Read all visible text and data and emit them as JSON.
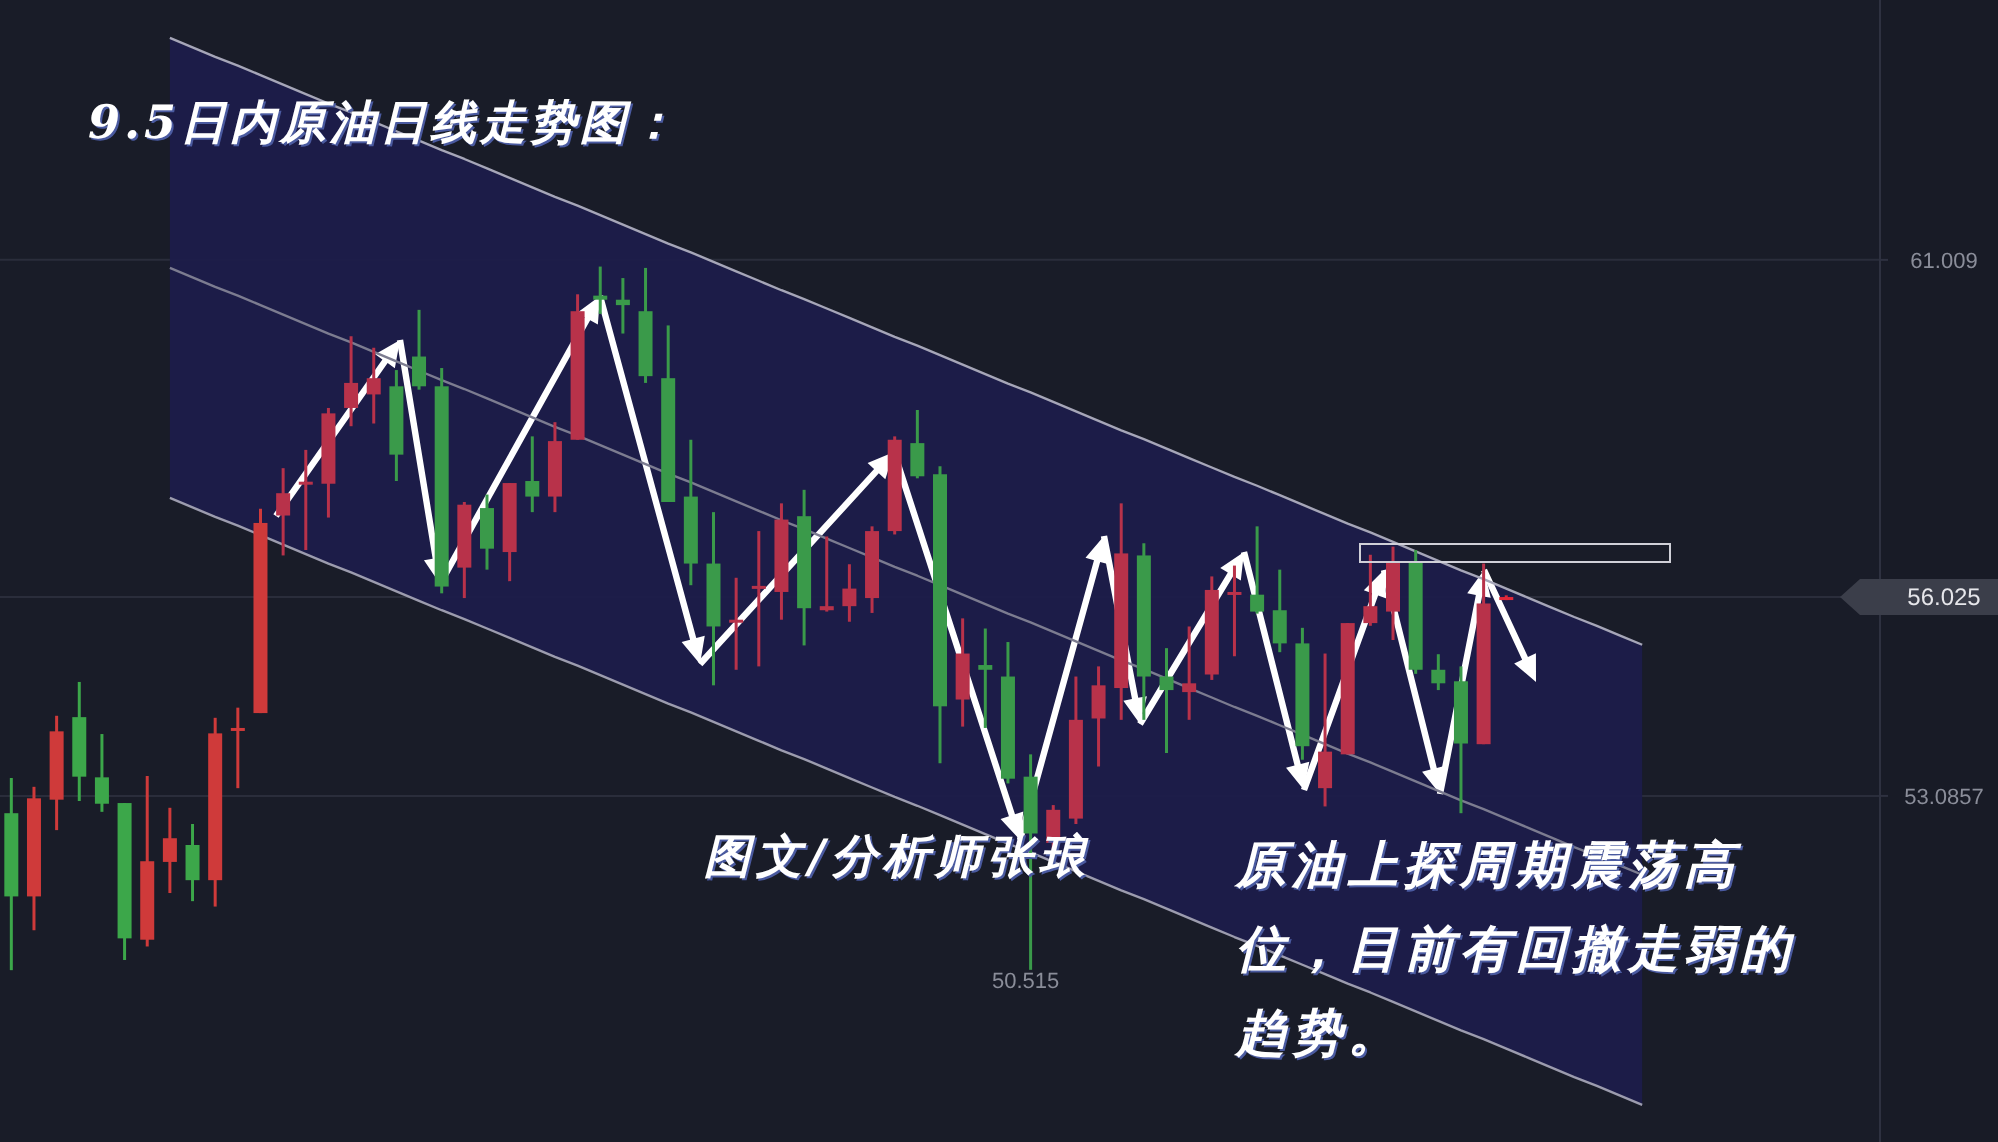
{
  "chart_data": {
    "type": "candlestick",
    "title": "9.5日内原油日线走势图：",
    "categories": [
      null,
      null,
      null,
      null,
      null,
      null,
      null,
      null,
      null,
      null,
      null,
      null,
      null,
      null,
      null,
      null,
      null,
      null,
      null,
      null,
      null,
      null,
      null,
      null,
      null,
      null,
      null,
      null,
      null,
      null,
      null,
      null,
      null,
      null,
      null,
      null,
      null,
      null,
      null,
      null,
      null,
      null,
      null,
      null,
      null,
      null,
      null,
      null,
      null,
      null,
      null,
      null,
      null,
      null,
      null,
      null,
      null,
      null,
      null,
      null,
      null,
      null,
      null,
      null,
      null,
      null,
      null,
      null,
      null,
      null,
      null,
      null,
      null,
      null,
      null,
      null,
      null,
      null,
      null,
      null,
      null,
      null,
      null
    ],
    "ohlc": [
      [
        52.83,
        53.35,
        50.51,
        51.6
      ],
      [
        51.6,
        53.22,
        51.1,
        53.05
      ],
      [
        53.03,
        54.27,
        52.58,
        54.04
      ],
      [
        54.25,
        54.77,
        53.01,
        53.37
      ],
      [
        53.36,
        54.0,
        52.85,
        52.97
      ],
      [
        52.98,
        52.98,
        50.66,
        50.98
      ],
      [
        50.96,
        53.38,
        50.86,
        52.12
      ],
      [
        52.11,
        52.91,
        51.65,
        52.46
      ],
      [
        52.36,
        52.67,
        51.53,
        51.84
      ],
      [
        51.84,
        54.24,
        51.45,
        54.01
      ],
      [
        54.08,
        54.39,
        53.2,
        54.09
      ],
      [
        54.31,
        57.33,
        54.31,
        57.12
      ],
      [
        57.23,
        57.93,
        56.64,
        57.56
      ],
      [
        57.7,
        58.2,
        56.72,
        57.73
      ],
      [
        57.7,
        58.82,
        57.2,
        58.74
      ],
      [
        58.82,
        59.88,
        58.55,
        59.19
      ],
      [
        59.02,
        59.71,
        58.59,
        59.26
      ],
      [
        59.14,
        59.38,
        57.74,
        58.13
      ],
      [
        59.58,
        60.27,
        59.09,
        59.14
      ],
      [
        59.14,
        59.41,
        56.08,
        56.18
      ],
      [
        56.46,
        57.43,
        56.01,
        57.39
      ],
      [
        57.34,
        57.54,
        56.43,
        56.74
      ],
      [
        56.69,
        57.71,
        56.26,
        57.71
      ],
      [
        57.74,
        58.4,
        57.28,
        57.51
      ],
      [
        57.51,
        58.61,
        57.28,
        58.33
      ],
      [
        58.35,
        60.5,
        58.35,
        60.25
      ],
      [
        60.48,
        60.91,
        60.21,
        60.42
      ],
      [
        60.42,
        60.74,
        59.92,
        60.34
      ],
      [
        60.25,
        60.89,
        59.19,
        59.29
      ],
      [
        59.26,
        60.04,
        57.43,
        57.43
      ],
      [
        57.51,
        58.35,
        56.2,
        56.52
      ],
      [
        56.52,
        57.28,
        54.72,
        55.59
      ],
      [
        55.67,
        56.31,
        54.95,
        55.69
      ],
      [
        56.18,
        57.0,
        55.0,
        56.19
      ],
      [
        56.1,
        57.41,
        55.69,
        57.17
      ],
      [
        57.22,
        57.61,
        55.31,
        55.86
      ],
      [
        55.83,
        56.92,
        55.81,
        55.89
      ],
      [
        55.89,
        56.51,
        55.66,
        56.15
      ],
      [
        56.01,
        57.07,
        55.79,
        57.0
      ],
      [
        57.0,
        58.4,
        56.95,
        58.35
      ],
      [
        58.3,
        58.79,
        57.78,
        57.81
      ],
      [
        57.84,
        57.96,
        53.57,
        54.41
      ],
      [
        54.51,
        55.71,
        54.11,
        55.19
      ],
      [
        55.02,
        55.56,
        54.09,
        54.95
      ],
      [
        54.85,
        55.36,
        53.27,
        53.34
      ],
      [
        53.37,
        53.7,
        50.515,
        52.53
      ],
      [
        52.39,
        52.95,
        52.29,
        52.88
      ],
      [
        52.75,
        54.85,
        52.67,
        54.21
      ],
      [
        54.23,
        55.0,
        53.52,
        54.72
      ],
      [
        54.68,
        57.41,
        54.21,
        56.67
      ],
      [
        56.64,
        56.82,
        54.21,
        54.85
      ],
      [
        54.85,
        55.27,
        53.72,
        54.65
      ],
      [
        54.62,
        55.59,
        54.21,
        54.75
      ],
      [
        54.88,
        56.33,
        54.8,
        56.13
      ],
      [
        56.06,
        56.49,
        55.15,
        56.1
      ],
      [
        56.06,
        57.07,
        55.78,
        55.81
      ],
      [
        55.83,
        56.43,
        55.21,
        55.34
      ],
      [
        55.34,
        55.57,
        53.62,
        53.82
      ],
      [
        53.2,
        55.19,
        52.93,
        53.74
      ],
      [
        53.7,
        55.64,
        53.7,
        55.64
      ],
      [
        55.64,
        56.65,
        55.6,
        55.89
      ],
      [
        55.81,
        56.77,
        55.39,
        56.55
      ],
      [
        56.55,
        56.72,
        54.89,
        54.95
      ],
      [
        54.95,
        55.18,
        54.65,
        54.75
      ],
      [
        54.78,
        55.0,
        52.83,
        53.86
      ],
      [
        53.85,
        56.52,
        53.85,
        55.93
      ],
      [
        56.0,
        56.05,
        55.98,
        56.025
      ],
      null,
      null,
      null,
      null,
      null,
      null,
      null,
      null,
      null,
      null,
      null,
      null,
      null,
      null,
      null,
      null
    ],
    "colors": [
      "#3ca74a",
      "#cf3a3a",
      "#cf3a3a",
      "#3ca74a",
      "#3ca74a",
      "#3ca74a",
      "#cf3a3a",
      "#cf3a3a",
      "#3ca74a",
      "#cf3a3a",
      "#cf3a3a",
      "#cf3a3a",
      "#b8324a",
      "#b8324a",
      "#b8324a",
      "#b8324a",
      "#b8324a",
      "#3a9a4a",
      "#3a9a4a",
      "#3a9a4a",
      "#b8324a",
      "#3a9a4a",
      "#b8324a",
      "#3a9a4a",
      "#b8324a",
      "#b8324a",
      "#3a9a4a",
      "#3a9a4a",
      "#3a9a4a",
      "#3a9a4a",
      "#3a9a4a",
      "#3a9a4a",
      "#b8324a",
      "#b8324a",
      "#b8324a",
      "#3a9a4a",
      "#b8324a",
      "#b8324a",
      "#b8324a",
      "#b8324a",
      "#3a9a4a",
      "#3a9a4a",
      "#b8324a",
      "#3a9a4a",
      "#3a9a4a",
      "#3a9a4a",
      "#b8324a",
      "#b8324a",
      "#b8324a",
      "#b8324a",
      "#3a9a4a",
      "#3a9a4a",
      "#b8324a",
      "#b8324a",
      "#b8324a",
      "#3a9a4a",
      "#3a9a4a",
      "#3a9a4a",
      "#b8324a",
      "#b8324a",
      "#b8324a",
      "#b8324a",
      "#3a9a4a",
      "#3a9a4a",
      "#3a9a4a",
      "#b8324a",
      "#e0283a",
      null,
      null,
      null,
      null,
      null,
      null,
      null,
      null,
      null,
      null,
      null,
      null,
      null,
      null,
      null,
      null
    ],
    "series": [
      {
        "type": "line",
        "color": "#a6a6b8",
        "values": [
          null,
          null,
          null,
          null,
          null,
          null,
          null,
          64.29,
          64.15,
          64.01,
          63.88,
          63.74,
          63.6,
          63.46,
          63.32,
          63.19,
          63.05,
          62.91,
          62.77,
          62.63,
          62.5,
          62.36,
          62.22,
          62.08,
          61.94,
          61.81,
          61.67,
          61.53,
          61.39,
          61.25,
          61.12,
          60.98,
          60.84,
          60.7,
          60.56,
          60.43,
          60.29,
          60.15,
          60.01,
          59.87,
          59.74,
          59.6,
          59.46,
          59.32,
          59.18,
          59.05,
          58.91,
          58.77,
          58.63,
          58.49,
          58.36,
          58.22,
          58.08,
          57.94,
          57.8,
          57.67,
          57.53,
          57.39,
          57.25,
          57.11,
          56.98,
          56.84,
          56.7,
          56.56,
          56.42,
          56.29,
          56.15,
          56.01,
          55.87,
          55.73,
          55.6,
          55.46,
          55.32,
          null,
          null,
          null,
          null,
          null,
          null,
          null,
          null,
          null,
          null
        ]
      },
      {
        "type": "line",
        "color": "#7c7c90",
        "values": [
          null,
          null,
          null,
          null,
          null,
          null,
          null,
          60.89,
          60.75,
          60.61,
          60.48,
          60.34,
          60.2,
          60.06,
          59.92,
          59.79,
          59.65,
          59.51,
          59.37,
          59.23,
          59.1,
          58.96,
          58.82,
          58.68,
          58.54,
          58.41,
          58.27,
          58.13,
          57.99,
          57.85,
          57.72,
          57.58,
          57.44,
          57.3,
          57.16,
          57.03,
          56.89,
          56.75,
          56.61,
          56.47,
          56.34,
          56.2,
          56.06,
          55.92,
          55.78,
          55.65,
          55.51,
          55.37,
          55.23,
          55.09,
          54.96,
          54.82,
          54.68,
          54.54,
          54.4,
          54.27,
          54.13,
          53.99,
          53.85,
          53.71,
          53.58,
          53.44,
          53.3,
          53.16,
          53.02,
          52.89,
          52.75,
          52.61,
          52.47,
          52.33,
          52.2,
          52.06,
          51.92,
          null,
          null,
          null,
          null,
          null,
          null,
          null,
          null,
          null,
          null
        ]
      },
      {
        "type": "line",
        "color": "#9c9cae",
        "values": [
          null,
          null,
          null,
          null,
          null,
          null,
          null,
          57.49,
          57.35,
          57.21,
          57.08,
          56.94,
          56.8,
          56.66,
          56.52,
          56.39,
          56.25,
          56.11,
          55.97,
          55.83,
          55.7,
          55.56,
          55.42,
          55.28,
          55.14,
          55.01,
          54.87,
          54.73,
          54.59,
          54.45,
          54.32,
          54.18,
          54.04,
          53.9,
          53.76,
          53.63,
          53.49,
          53.35,
          53.21,
          53.07,
          52.94,
          52.8,
          52.66,
          52.52,
          52.38,
          52.25,
          52.11,
          51.97,
          51.83,
          51.69,
          51.56,
          51.42,
          51.28,
          51.14,
          51.0,
          50.87,
          50.73,
          50.59,
          50.45,
          50.31,
          50.18,
          50.04,
          49.9,
          49.76,
          49.62,
          49.49,
          49.35,
          49.21,
          49.07,
          48.93,
          48.8,
          48.66,
          48.52,
          null,
          null,
          null,
          null,
          null,
          null,
          null,
          null,
          null,
          null
        ]
      }
    ],
    "ylim": [
      47.97,
      64.85
    ],
    "yticks": [
      61.009,
      56.025,
      53.0857
    ],
    "grid": "y",
    "tick_labels": "y",
    "annotations": [
      "图文/分析师张琅",
      "原油上探周期震荡高位，目前有回撤走弱的趋势。",
      "50.515"
    ]
  }
}
